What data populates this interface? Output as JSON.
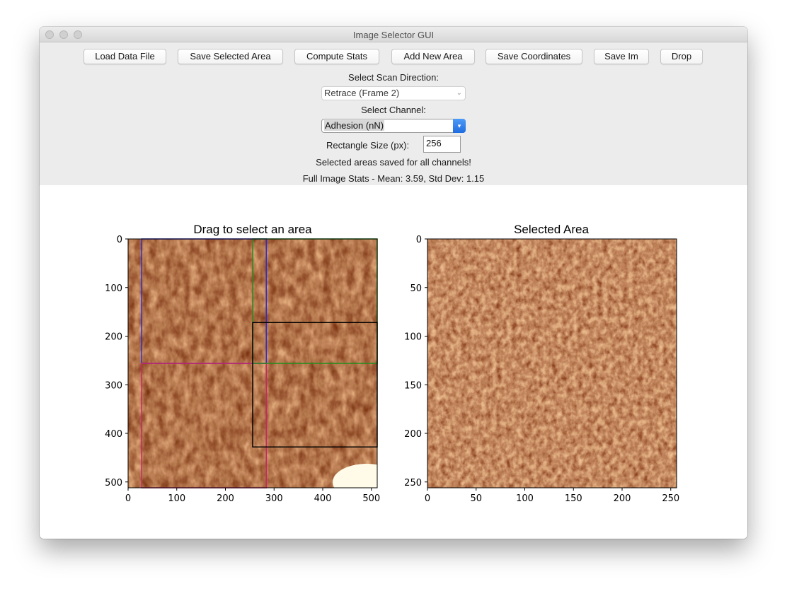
{
  "window": {
    "title": "Image Selector GUI"
  },
  "toolbar": {
    "buttons": [
      "Load Data File",
      "Save Selected Area",
      "Compute Stats",
      "Add New Area",
      "Save Coordinates",
      "Save Im",
      "Drop"
    ]
  },
  "scan_direction": {
    "label": "Select Scan Direction:",
    "value": "Retrace (Frame 2)"
  },
  "channel": {
    "label": "Select Channel:",
    "value": "Adhesion (nN)"
  },
  "rect_size": {
    "label": "Rectangle Size (px):",
    "value": "256"
  },
  "status": {
    "message": "Selected areas saved for all channels!",
    "stats": "Full Image Stats - Mean: 3.59, Std Dev: 1.15"
  },
  "left_plot": {
    "title": "Drag to select an area",
    "x_ticks": [
      "0",
      "100",
      "200",
      "300",
      "400",
      "500"
    ],
    "y_ticks": [
      "0",
      "100",
      "200",
      "300",
      "400",
      "500"
    ],
    "x_range": [
      0,
      512
    ],
    "y_range": [
      0,
      512
    ],
    "selections": [
      {
        "color": "#2b2bd6",
        "x": 28,
        "y": 0,
        "w": 256,
        "h": 256
      },
      {
        "color": "#c8246a",
        "x": 28,
        "y": 256,
        "w": 256,
        "h": 256
      },
      {
        "color": "#1f8f1f",
        "x": 256,
        "y": 0,
        "w": 256,
        "h": 256
      },
      {
        "color": "#000000",
        "x": 256,
        "y": 172,
        "w": 256,
        "h": 256
      }
    ]
  },
  "right_plot": {
    "title": "Selected Area",
    "x_ticks": [
      "0",
      "50",
      "100",
      "150",
      "200",
      "250"
    ],
    "y_ticks": [
      "0",
      "50",
      "100",
      "150",
      "200",
      "250"
    ],
    "x_range": [
      0,
      256
    ],
    "y_range": [
      0,
      256
    ]
  },
  "colors": {
    "colormap": [
      "#fffae6",
      "#f5c79a",
      "#dc8a4e",
      "#a8461c",
      "#5a1a05"
    ]
  }
}
